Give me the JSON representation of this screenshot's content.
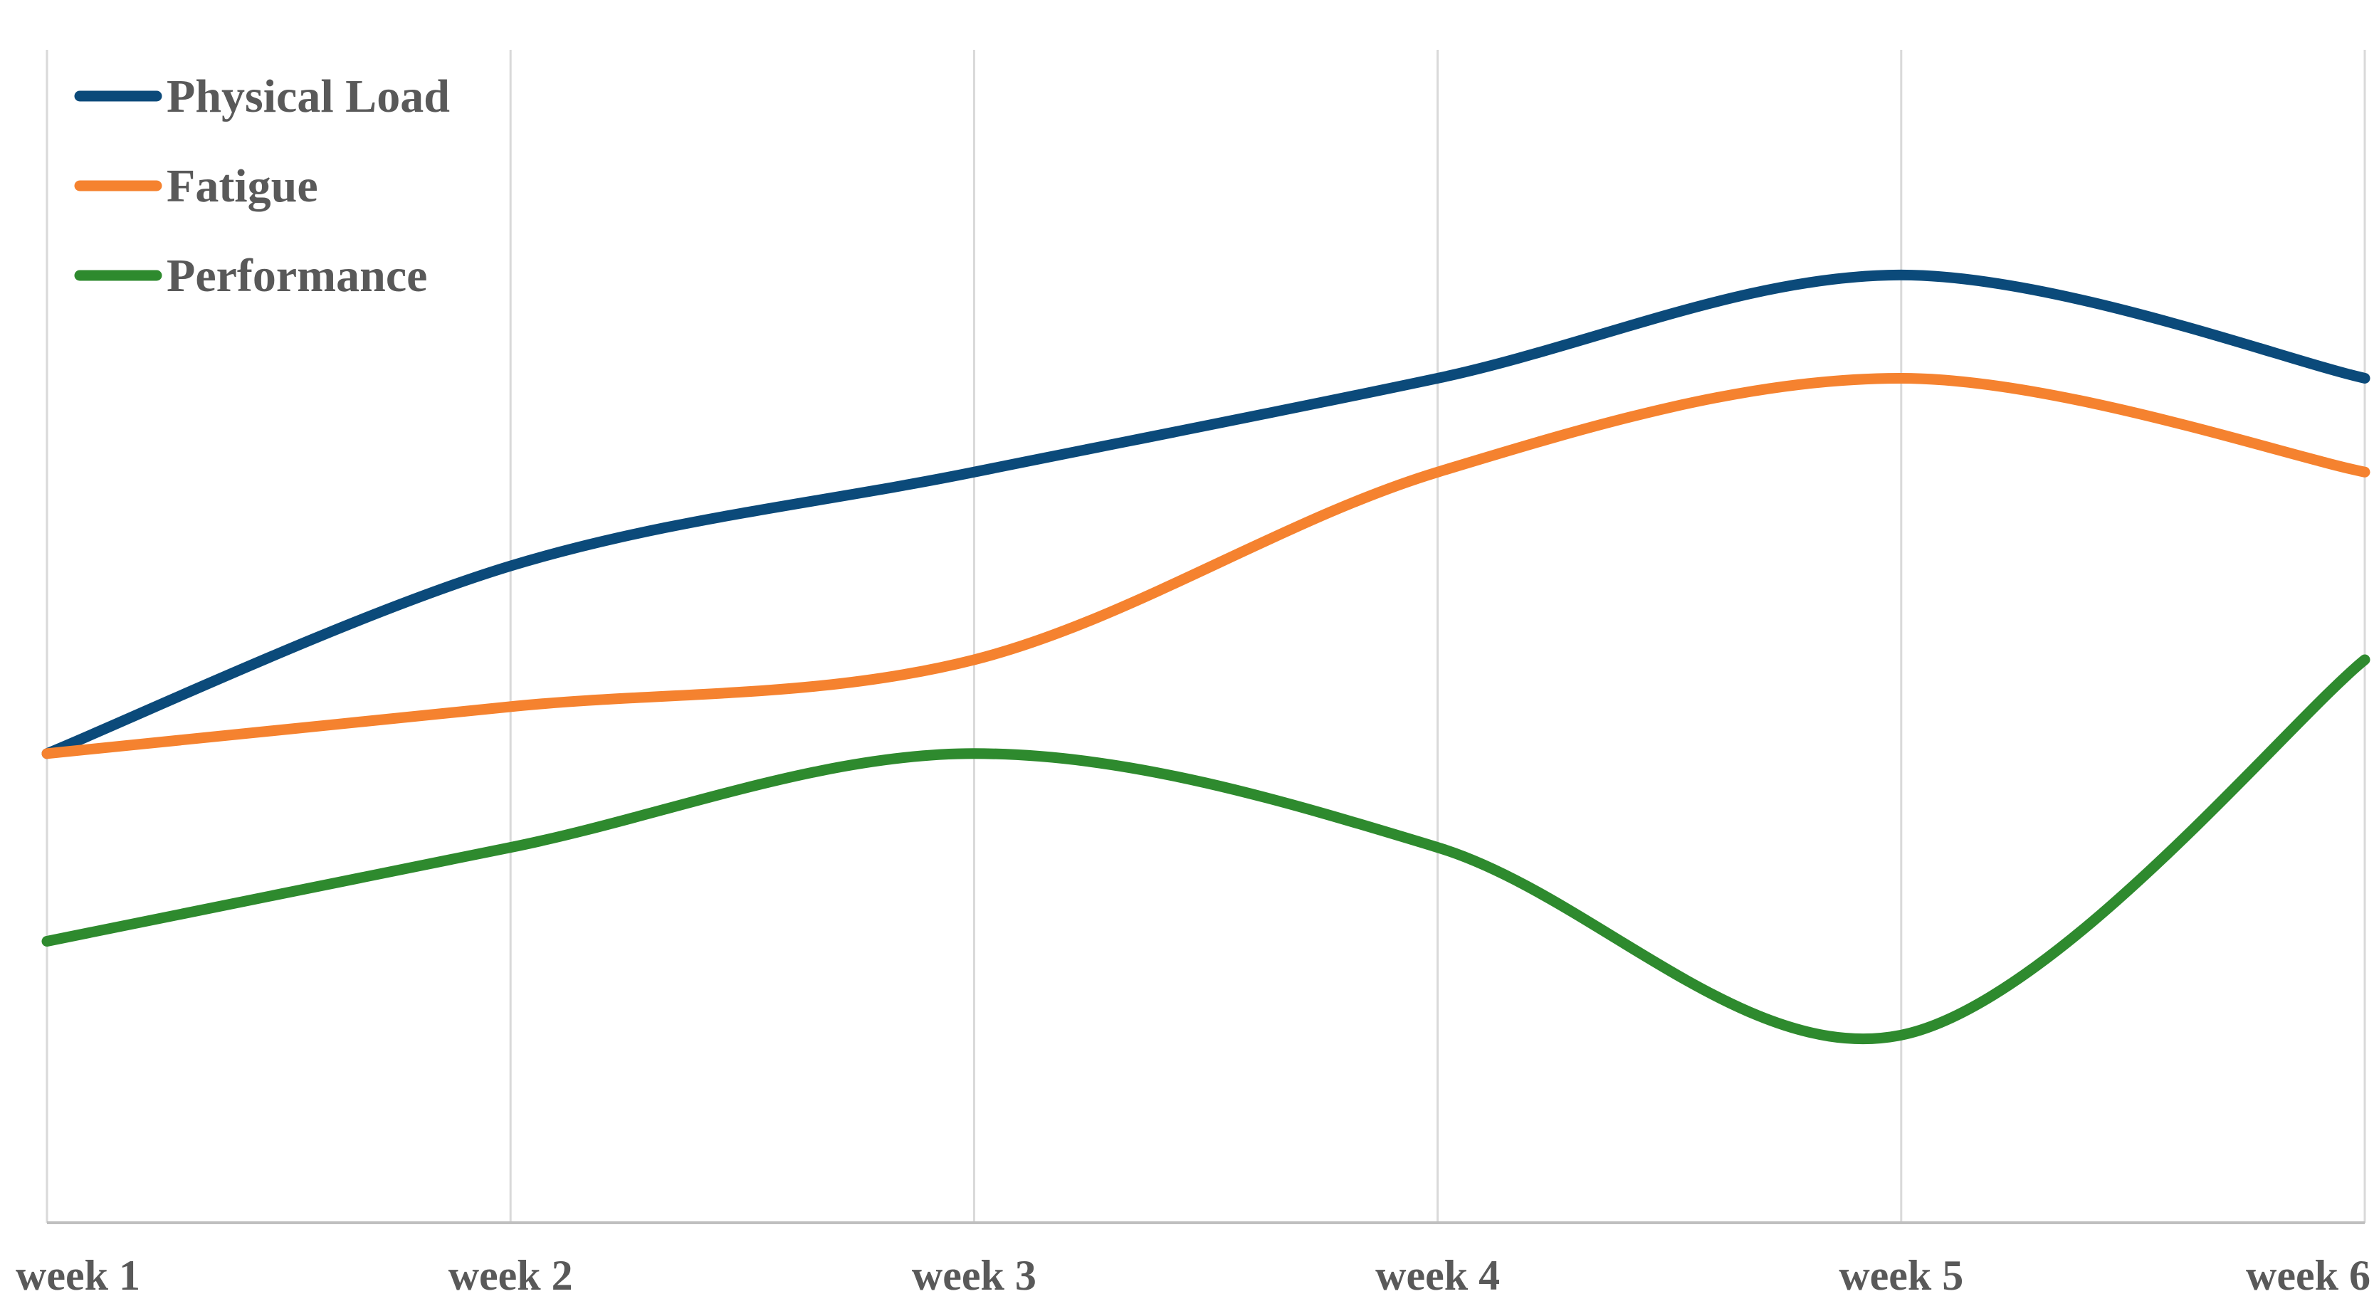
{
  "chart_data": {
    "type": "line",
    "smooth": true,
    "categories": [
      "week 1",
      "week 2",
      "week 3",
      "week 4",
      "week 5",
      "week 6"
    ],
    "series": [
      {
        "name": "Physical Load",
        "color": "#0b4a7a",
        "values": [
          5.0,
          7.0,
          8.0,
          9.0,
          10.1,
          9.0
        ]
      },
      {
        "name": "Fatigue",
        "color": "#f5822f",
        "values": [
          5.0,
          5.5,
          6.0,
          8.0,
          9.0,
          8.0
        ]
      },
      {
        "name": "Performance",
        "color": "#2e8a2e",
        "values": [
          3.0,
          4.0,
          5.0,
          4.0,
          2.0,
          6.0
        ]
      }
    ],
    "ylim": [
      0,
      12.5
    ],
    "grid": "vertical",
    "legend": "top-left",
    "title": "",
    "xlabel": "",
    "ylabel": ""
  }
}
